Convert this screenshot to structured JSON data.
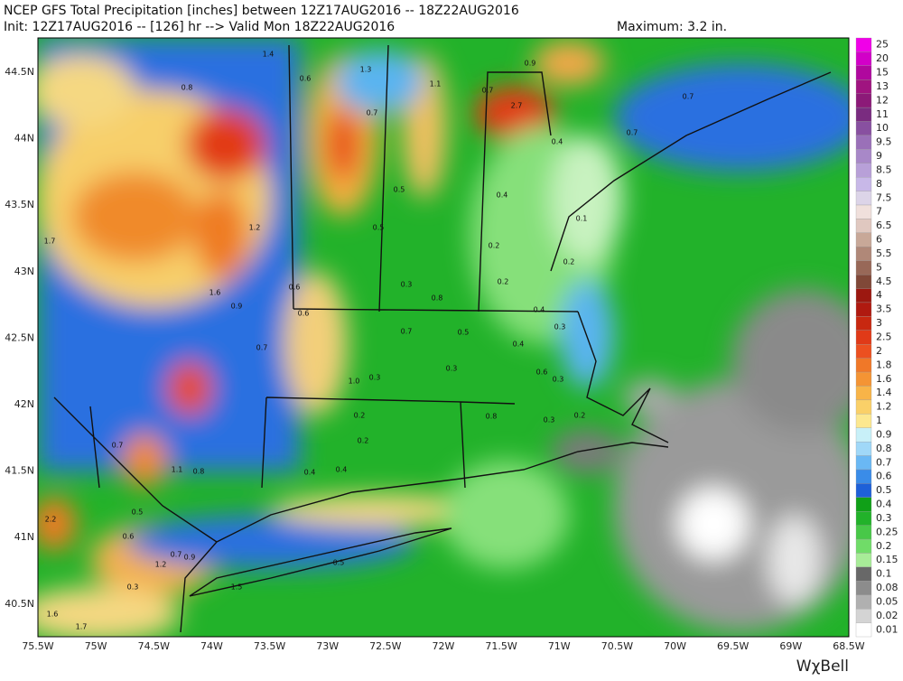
{
  "header": {
    "line1": "NCEP GFS Total Precipitation [inches] between 12Z17AUG2016 -- 18Z22AUG2016",
    "line2": "Init: 12Z17AUG2016 -- [126] hr --> Valid Mon 18Z22AUG2016",
    "maximum": "Maximum: 3.2 in.",
    "logo": "WχBell"
  },
  "map": {
    "lat_labels": [
      "44.5N",
      "44N",
      "43.5N",
      "43N",
      "42.5N",
      "42N",
      "41.5N",
      "41N",
      "40.5N"
    ],
    "lon_labels": [
      "75.5W",
      "75W",
      "74.5W",
      "74W",
      "73.5W",
      "73W",
      "72.5W",
      "72W",
      "71.5W",
      "71W",
      "70.5W",
      "70W",
      "69.5W",
      "69W",
      "68.5W"
    ],
    "point_labels": [
      "0.8",
      "1.4",
      "0.6",
      "1.3",
      "1.1",
      "0.7",
      "0.9",
      "2.7",
      "0.7",
      "0.4",
      "0.7",
      "0.7",
      "1.7",
      "1.2",
      "0.5",
      "0.4",
      "0.1",
      "0.2",
      "0.5",
      "0.2",
      "0.6",
      "1.6",
      "0.9",
      "0.6",
      "0.3",
      "0.8",
      "0.2",
      "0.4",
      "0.7",
      "0.5",
      "0.3",
      "0.4",
      "0.3",
      "0.7",
      "1.0",
      "0.3",
      "0.6",
      "0.3",
      "0.2",
      "0.8",
      "0.3",
      "0.2",
      "0.7",
      "1.1",
      "0.8",
      "0.4",
      "0.4",
      "0.2",
      "2.2",
      "0.5",
      "0.6",
      "1.2",
      "0.7",
      "0.9",
      "0.5",
      "0.3",
      "1.6",
      "1.7",
      "1.5"
    ]
  },
  "legend": {
    "labels": [
      "25",
      "20",
      "15",
      "13",
      "12",
      "11",
      "10",
      "9.5",
      "9",
      "8.5",
      "8",
      "7.5",
      "7",
      "6.5",
      "6",
      "5.5",
      "5",
      "4.5",
      "4",
      "3.5",
      "3",
      "2.5",
      "2",
      "1.8",
      "1.6",
      "1.4",
      "1.2",
      "1",
      "0.9",
      "0.8",
      "0.7",
      "0.6",
      "0.5",
      "0.4",
      "0.3",
      "0.25",
      "0.2",
      "0.15",
      "0.1",
      "0.08",
      "0.05",
      "0.02",
      "0.01"
    ],
    "colors": [
      "#f000e8",
      "#d200c8",
      "#b0089e",
      "#a01480",
      "#8c1a78",
      "#7a2c80",
      "#8850a0",
      "#9a70b8",
      "#a888c8",
      "#b8a0d8",
      "#c8b8e8",
      "#dcd4e8",
      "#f0e0dc",
      "#e0c8c0",
      "#c8a898",
      "#b08878",
      "#986858",
      "#804838",
      "#9c1810",
      "#b01a10",
      "#c82810",
      "#e03a18",
      "#ec5020",
      "#f07828",
      "#f49434",
      "#f8b448",
      "#fad068",
      "#fce890",
      "#c8f0f8",
      "#a0d8f8",
      "#6ab8f4",
      "#3a8ce8",
      "#1e60d8",
      "#10a018",
      "#22b22a",
      "#48c848",
      "#70dc68",
      "#a8ec98",
      "#686868",
      "#8c8c8c",
      "#b0b0b0",
      "#d4d4d4",
      "#ffffff"
    ]
  }
}
